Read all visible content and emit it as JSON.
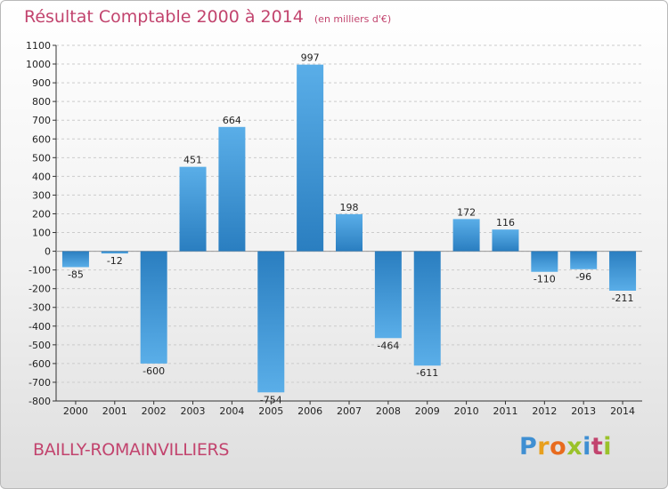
{
  "page": {
    "town": "BAILLY-ROMAINVILLIERS",
    "brand": "Proxiti"
  },
  "colors": {
    "title": "#c2446e",
    "bar_light": "#5aaee8",
    "bar_dark": "#2a7ec0",
    "grid": "#cccccc",
    "axis": "#333333"
  },
  "chart_data": {
    "type": "bar",
    "title": "Résultat Comptable 2000 à 2014",
    "subtitle": "(en milliers d'€)",
    "xlabel": "",
    "ylabel": "",
    "categories": [
      "2000",
      "2001",
      "2002",
      "2003",
      "2004",
      "2005",
      "2006",
      "2007",
      "2008",
      "2009",
      "2010",
      "2011",
      "2012",
      "2013",
      "2014"
    ],
    "values": [
      -85,
      -12,
      -600,
      451,
      664,
      -754,
      997,
      198,
      -464,
      -611,
      172,
      116,
      -110,
      -96,
      -211
    ],
    "ylim": [
      -800,
      1100
    ],
    "yticks": [
      -800,
      -700,
      -600,
      -500,
      -400,
      -300,
      -200,
      -100,
      0,
      100,
      200,
      300,
      400,
      500,
      600,
      700,
      800,
      900,
      1000,
      1100
    ],
    "grid": "horizontal dashed",
    "legend": "none"
  }
}
